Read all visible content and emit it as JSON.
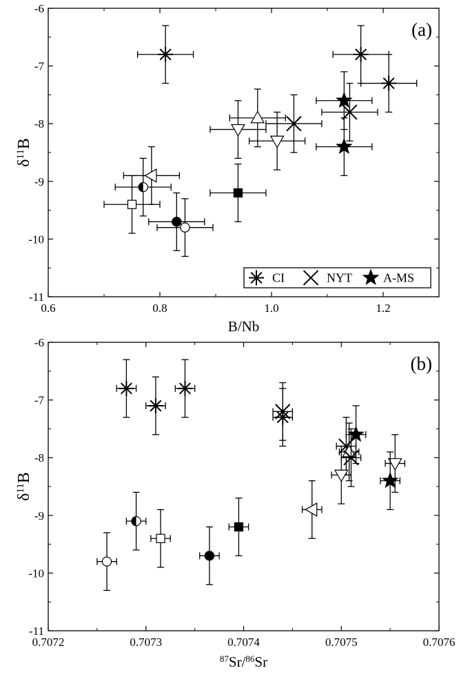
{
  "chart_data": [
    {
      "type": "scatter",
      "panel_label": "(a)",
      "xlabel": "B/Nb",
      "ylabel": "δ11B",
      "ylabel_base": "δ",
      "ylabel_sup": "11",
      "ylabel_tail": "B",
      "xlim": [
        0.6,
        1.3
      ],
      "ylim": [
        -11,
        -6
      ],
      "xticks": [
        0.6,
        0.8,
        1.0,
        1.2
      ],
      "xtick_labels": [
        "0.6",
        "0.8",
        "1.0",
        "1.2"
      ],
      "yticks": [
        -11,
        -10,
        -9,
        -8,
        -7,
        -6
      ],
      "ytick_labels": [
        "-11",
        "-10",
        "-9",
        "-8",
        "-7",
        "-6"
      ],
      "grid": false,
      "legend_position": "bottom-right",
      "legend": [
        {
          "marker": "asterisk",
          "label": "CI"
        },
        {
          "marker": "cross",
          "label": "NYT"
        },
        {
          "marker": "star",
          "label": "A-MS"
        }
      ],
      "points": [
        {
          "marker": "asterisk",
          "x": 0.81,
          "y": -6.8,
          "xerr": 0.05,
          "yerr": 0.5
        },
        {
          "marker": "asterisk",
          "x": 1.16,
          "y": -6.8,
          "xerr": 0.05,
          "yerr": 0.5
        },
        {
          "marker": "asterisk",
          "x": 1.21,
          "y": -7.3,
          "xerr": 0.05,
          "yerr": 0.5
        },
        {
          "marker": "star",
          "x": 1.13,
          "y": -7.6,
          "xerr": 0.05,
          "yerr": 0.5
        },
        {
          "marker": "star",
          "x": 1.13,
          "y": -8.4,
          "xerr": 0.05,
          "yerr": 0.5
        },
        {
          "marker": "cross",
          "x": 1.14,
          "y": -7.8,
          "xerr": 0.05,
          "yerr": 0.5
        },
        {
          "marker": "cross",
          "x": 1.04,
          "y": -8.0,
          "xerr": 0.05,
          "yerr": 0.5
        },
        {
          "marker": "tri-up",
          "x": 0.975,
          "y": -7.9,
          "xerr": 0.05,
          "yerr": 0.5
        },
        {
          "marker": "tri-down",
          "x": 0.94,
          "y": -8.1,
          "xerr": 0.05,
          "yerr": 0.5
        },
        {
          "marker": "tri-down",
          "x": 1.01,
          "y": -8.3,
          "xerr": 0.05,
          "yerr": 0.5
        },
        {
          "marker": "tri-left",
          "x": 0.785,
          "y": -8.9,
          "xerr": 0.05,
          "yerr": 0.5
        },
        {
          "marker": "half-circle",
          "x": 0.77,
          "y": -9.1,
          "xerr": 0.05,
          "yerr": 0.5
        },
        {
          "marker": "square-filled",
          "x": 0.94,
          "y": -9.2,
          "xerr": 0.05,
          "yerr": 0.5
        },
        {
          "marker": "square-open",
          "x": 0.75,
          "y": -9.4,
          "xerr": 0.05,
          "yerr": 0.5
        },
        {
          "marker": "circle-filled",
          "x": 0.83,
          "y": -9.7,
          "xerr": 0.05,
          "yerr": 0.5
        },
        {
          "marker": "circle-open",
          "x": 0.845,
          "y": -9.8,
          "xerr": 0.05,
          "yerr": 0.5
        }
      ]
    },
    {
      "type": "scatter",
      "panel_label": "(b)",
      "xlabel": "87Sr/86Sr",
      "xlabel_sup1": "87",
      "xlabel_mid": "Sr/",
      "xlabel_sup2": "86",
      "xlabel_tail": "Sr",
      "ylabel": "δ11B",
      "ylabel_base": "δ",
      "ylabel_sup": "11",
      "ylabel_tail": "B",
      "xlim": [
        0.7072,
        0.7076
      ],
      "ylim": [
        -11,
        -6
      ],
      "xticks": [
        0.7072,
        0.7073,
        0.7074,
        0.7075,
        0.7076
      ],
      "xtick_labels": [
        "0.7072",
        "0.7073",
        "0.7074",
        "0.7075",
        "0.7076"
      ],
      "yticks": [
        -11,
        -10,
        -9,
        -8,
        -7,
        -6
      ],
      "ytick_labels": [
        "-11",
        "-10",
        "-9",
        "-8",
        "-7",
        "-6"
      ],
      "grid": false,
      "points": [
        {
          "marker": "asterisk",
          "x": 0.70728,
          "y": -6.8,
          "xerr": 1e-05,
          "yerr": 0.5
        },
        {
          "marker": "asterisk",
          "x": 0.70731,
          "y": -7.1,
          "xerr": 1e-05,
          "yerr": 0.5
        },
        {
          "marker": "asterisk",
          "x": 0.70734,
          "y": -6.8,
          "xerr": 1e-05,
          "yerr": 0.5
        },
        {
          "marker": "asterisk",
          "x": 0.70744,
          "y": -7.3,
          "xerr": 1e-05,
          "yerr": 0.5
        },
        {
          "marker": "cross",
          "x": 0.70744,
          "y": -7.2,
          "xerr": 1e-05,
          "yerr": 0.5
        },
        {
          "marker": "cross",
          "x": 0.707505,
          "y": -7.8,
          "xerr": 1e-05,
          "yerr": 0.5
        },
        {
          "marker": "tri-up",
          "x": 0.707508,
          "y": -7.9,
          "xerr": 1e-05,
          "yerr": 0.5
        },
        {
          "marker": "cross",
          "x": 0.70751,
          "y": -8.0,
          "xerr": 1e-05,
          "yerr": 0.5
        },
        {
          "marker": "star",
          "x": 0.707515,
          "y": -7.6,
          "xerr": 1e-05,
          "yerr": 0.5
        },
        {
          "marker": "tri-down",
          "x": 0.7075,
          "y": -8.3,
          "xerr": 1e-05,
          "yerr": 0.5
        },
        {
          "marker": "tri-down",
          "x": 0.707555,
          "y": -8.1,
          "xerr": 1e-05,
          "yerr": 0.5
        },
        {
          "marker": "star",
          "x": 0.70755,
          "y": -8.4,
          "xerr": 1e-05,
          "yerr": 0.5
        },
        {
          "marker": "tri-left",
          "x": 0.70747,
          "y": -8.9,
          "xerr": 1e-05,
          "yerr": 0.5
        },
        {
          "marker": "half-circle",
          "x": 0.70729,
          "y": -9.1,
          "xerr": 1e-05,
          "yerr": 0.5
        },
        {
          "marker": "square-filled",
          "x": 0.707395,
          "y": -9.2,
          "xerr": 1e-05,
          "yerr": 0.5
        },
        {
          "marker": "square-open",
          "x": 0.707315,
          "y": -9.4,
          "xerr": 1e-05,
          "yerr": 0.5
        },
        {
          "marker": "circle-filled",
          "x": 0.707365,
          "y": -9.7,
          "xerr": 1e-05,
          "yerr": 0.5
        },
        {
          "marker": "circle-open",
          "x": 0.70726,
          "y": -9.8,
          "xerr": 1e-05,
          "yerr": 0.5
        }
      ]
    }
  ]
}
